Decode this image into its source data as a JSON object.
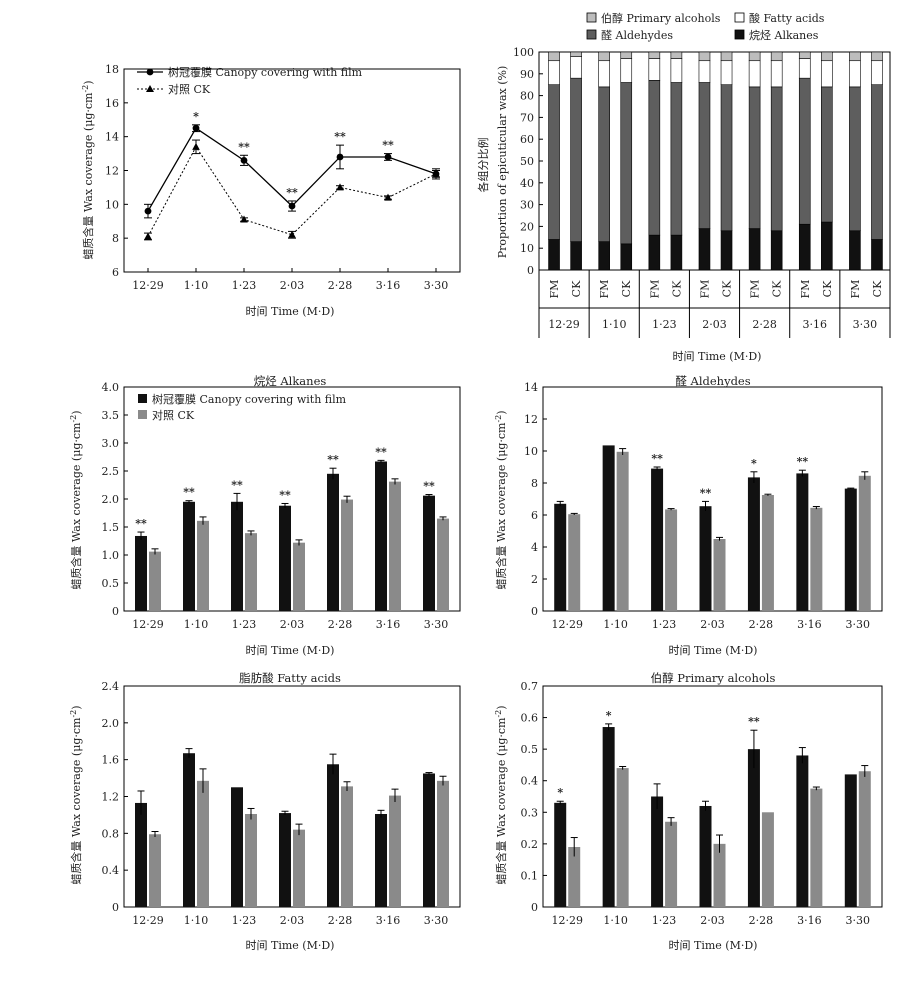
{
  "figure": {
    "x_title": "时间 Time (M·D)",
    "y_title_cov": "蜡质含量 Wax coverage (μg·cm",
    "y_title_cov_sup": "-2",
    "y_title_cov_end": ")",
    "y_title_prop_cn": "各组分比例",
    "y_title_prop_en": "Proportion of epicuticular wax (%)",
    "dates": [
      "12·29",
      "1·10",
      "1·23",
      "2·03",
      "2·28",
      "3·16",
      "3·30"
    ]
  },
  "chart_data": [
    {
      "id": "total",
      "type": "line",
      "title": "",
      "x": [
        "12·29",
        "1·10",
        "1·23",
        "2·03",
        "2·28",
        "3·16",
        "3·30"
      ],
      "ylim": [
        6,
        18
      ],
      "yticks": [
        6,
        8,
        10,
        12,
        14,
        16,
        18
      ],
      "series": [
        {
          "name": "树冠覆膜 Canopy covering with film",
          "values": [
            9.6,
            14.5,
            12.6,
            9.9,
            12.8,
            12.8,
            11.8
          ],
          "err": [
            0.4,
            0.2,
            0.3,
            0.3,
            0.7,
            0.2,
            0.3
          ],
          "marker": "circle",
          "line": "solid"
        },
        {
          "name": "对照 CK",
          "values": [
            8.1,
            13.4,
            9.1,
            8.2,
            11.0,
            10.4,
            11.8
          ],
          "err": [
            0.2,
            0.4,
            0.1,
            0.2,
            0.1,
            0.1,
            0.2
          ],
          "marker": "triangle",
          "line": "dotted"
        }
      ],
      "significance": [
        "",
        "*",
        "**",
        "**",
        "**",
        "**",
        ""
      ]
    },
    {
      "id": "proportion",
      "type": "bar",
      "stacked": true,
      "title": "",
      "groups": [
        "12·29",
        "1·10",
        "1·23",
        "2·03",
        "2·28",
        "3·16",
        "3·30"
      ],
      "bar_labels": [
        "FM",
        "CK"
      ],
      "ylim": [
        0,
        100
      ],
      "yticks": [
        0,
        10,
        20,
        30,
        40,
        50,
        60,
        70,
        80,
        90,
        100
      ],
      "series": [
        {
          "name": "烷烃 Alkanes",
          "color": "#111111",
          "values": [
            14,
            13,
            13,
            12,
            16,
            16,
            19,
            18,
            19,
            18,
            21,
            22,
            18,
            14
          ]
        },
        {
          "name": "醛 Aldehydes",
          "color": "#5e5e5e",
          "values": [
            71,
            75,
            71,
            74,
            71,
            70,
            67,
            67,
            65,
            66,
            67,
            62,
            66,
            71
          ]
        },
        {
          "name": "酸 Fatty acids",
          "color": "#ffffff",
          "values": [
            11,
            10,
            12,
            11,
            10,
            11,
            10,
            11,
            12,
            12,
            9,
            12,
            12,
            11
          ]
        },
        {
          "name": "伯醇 Primary alcohols",
          "color": "#bdbdbd",
          "values": [
            4,
            2,
            4,
            3,
            3,
            3,
            4,
            4,
            4,
            4,
            3,
            4,
            4,
            4
          ]
        }
      ]
    },
    {
      "id": "alkanes",
      "type": "bar",
      "title": "烷烃 Alkanes",
      "categories": [
        "12·29",
        "1·10",
        "1·23",
        "2·03",
        "2·28",
        "3·16",
        "3·30"
      ],
      "ylim": [
        0,
        4
      ],
      "yticks": [
        "0",
        "0.5",
        "1.0",
        "1.5",
        "2.0",
        "2.5",
        "3.0",
        "3.5",
        "4.0"
      ],
      "series": [
        {
          "name": "树冠覆膜 Canopy covering with film",
          "color": "#111111",
          "values": [
            1.34,
            1.95,
            1.95,
            1.88,
            2.45,
            2.67,
            2.06
          ],
          "err": [
            0.07,
            0.02,
            0.15,
            0.04,
            0.1,
            0.02,
            0.02
          ]
        },
        {
          "name": "对照 CK",
          "color": "#8a8a8a",
          "values": [
            1.06,
            1.61,
            1.39,
            1.22,
            1.99,
            2.31,
            1.65
          ],
          "err": [
            0.05,
            0.07,
            0.04,
            0.05,
            0.06,
            0.05,
            0.03
          ]
        }
      ],
      "significance": [
        "**",
        "**",
        "**",
        "**",
        "**",
        "**",
        "**"
      ]
    },
    {
      "id": "aldehydes",
      "type": "bar",
      "title": "醛 Aldehydes",
      "categories": [
        "12·29",
        "1·10",
        "1·23",
        "2·03",
        "2·28",
        "3·16",
        "3·30"
      ],
      "ylim": [
        0,
        14
      ],
      "yticks": [
        "0",
        "2",
        "4",
        "6",
        "8",
        "10",
        "12",
        "14"
      ],
      "series": [
        {
          "name": "树冠覆膜 Canopy covering with film",
          "color": "#111111",
          "values": [
            6.7,
            10.35,
            8.9,
            6.55,
            8.35,
            8.6,
            7.65
          ],
          "err": [
            0.15,
            0.0,
            0.1,
            0.3,
            0.35,
            0.2,
            0.03
          ]
        },
        {
          "name": "对照 CK",
          "color": "#8a8a8a",
          "values": [
            6.05,
            9.95,
            6.35,
            4.5,
            7.25,
            6.45,
            8.45
          ],
          "err": [
            0.05,
            0.2,
            0.05,
            0.1,
            0.05,
            0.08,
            0.25
          ]
        }
      ],
      "significance": [
        "",
        "",
        "**",
        "**",
        "*",
        "**",
        ""
      ]
    },
    {
      "id": "fatty_acids",
      "type": "bar",
      "title": "脂肪酸 Fatty acids",
      "categories": [
        "12·29",
        "1·10",
        "1·23",
        "2·03",
        "2·28",
        "3·16",
        "3·30"
      ],
      "ylim": [
        0,
        2.4
      ],
      "yticks": [
        "0",
        "0.4",
        "0.8",
        "1.2",
        "1.6",
        "2.0",
        "2.4"
      ],
      "series": [
        {
          "name": "树冠覆膜 Canopy covering with film",
          "color": "#111111",
          "values": [
            1.13,
            1.67,
            1.3,
            1.02,
            1.55,
            1.01,
            1.45
          ],
          "err": [
            0.13,
            0.05,
            0.0,
            0.02,
            0.11,
            0.04,
            0.01
          ]
        },
        {
          "name": "对照 CK",
          "color": "#8a8a8a",
          "values": [
            0.79,
            1.37,
            1.01,
            0.84,
            1.31,
            1.21,
            1.37
          ],
          "err": [
            0.03,
            0.13,
            0.06,
            0.06,
            0.05,
            0.07,
            0.05
          ]
        }
      ],
      "significance": [
        "",
        "",
        "",
        "",
        "",
        "",
        ""
      ]
    },
    {
      "id": "alcohols",
      "type": "bar",
      "title": "伯醇 Primary alcohols",
      "categories": [
        "12·29",
        "1·10",
        "1·23",
        "2·03",
        "2·28",
        "3·16",
        "3·30"
      ],
      "ylim": [
        0,
        0.7
      ],
      "yticks": [
        "0",
        "0.1",
        "0.2",
        "0.3",
        "0.4",
        "0.5",
        "0.6",
        "0.7"
      ],
      "series": [
        {
          "name": "树冠覆膜 Canopy covering with film",
          "color": "#111111",
          "values": [
            0.33,
            0.57,
            0.35,
            0.32,
            0.5,
            0.48,
            0.42
          ],
          "err": [
            0.005,
            0.01,
            0.04,
            0.015,
            0.06,
            0.025,
            0.0
          ]
        },
        {
          "name": "对照 CK",
          "color": "#8a8a8a",
          "values": [
            0.19,
            0.44,
            0.27,
            0.2,
            0.3,
            0.375,
            0.43
          ],
          "err": [
            0.03,
            0.005,
            0.013,
            0.028,
            0.0,
            0.005,
            0.018
          ]
        }
      ],
      "significance": [
        "*",
        "*",
        "",
        "",
        "**",
        "",
        ""
      ]
    }
  ]
}
